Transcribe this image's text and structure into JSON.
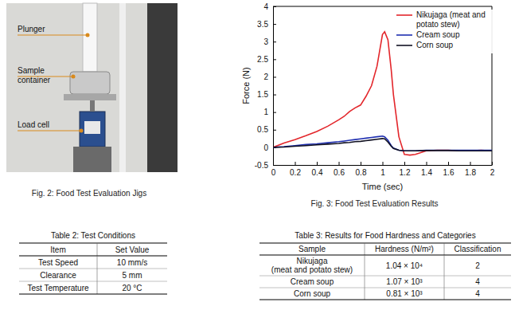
{
  "figure2": {
    "caption": "Fig. 2: Food Test Evaluation Jigs",
    "labels": [
      "Plunger",
      "Sample container",
      "Load cell"
    ]
  },
  "chart_data": {
    "type": "line",
    "title": "Fig. 3: Food Test Evaluation Results",
    "x_label": "Time (sec)",
    "y_label": "Force (N)",
    "x": [
      0,
      0.1,
      0.2,
      0.3,
      0.4,
      0.5,
      0.6,
      0.65,
      0.7,
      0.75,
      0.8,
      0.85,
      0.9,
      0.95,
      1.0,
      1.02,
      1.05,
      1.08,
      1.1,
      1.15,
      1.2,
      1.25,
      1.3,
      1.4,
      1.5,
      1.6,
      1.7,
      1.8,
      1.9,
      2.0
    ],
    "series": [
      {
        "name": "Nikujaga (meat and potato stew)",
        "color": "#e3262b",
        "values": [
          0.0,
          0.12,
          0.22,
          0.33,
          0.45,
          0.6,
          0.78,
          0.88,
          1.02,
          1.12,
          1.2,
          1.45,
          1.75,
          2.3,
          3.2,
          3.28,
          3.05,
          2.2,
          1.5,
          0.3,
          -0.2,
          -0.22,
          -0.2,
          -0.1,
          -0.08,
          -0.08,
          -0.1,
          -0.1,
          -0.08,
          -0.1
        ]
      },
      {
        "name": "Cream soup",
        "color": "#1f2fb0",
        "values": [
          0.0,
          0.02,
          0.05,
          0.08,
          0.1,
          0.13,
          0.16,
          0.18,
          0.2,
          0.22,
          0.24,
          0.26,
          0.28,
          0.3,
          0.32,
          0.3,
          0.2,
          0.05,
          -0.02,
          -0.08,
          -0.1,
          -0.1,
          -0.1,
          -0.08,
          -0.08,
          -0.08,
          -0.08,
          -0.08,
          -0.08,
          -0.08
        ]
      },
      {
        "name": "Corn soup",
        "color": "#111122",
        "values": [
          0.0,
          0.01,
          0.03,
          0.05,
          0.07,
          0.09,
          0.11,
          0.13,
          0.14,
          0.16,
          0.17,
          0.19,
          0.21,
          0.23,
          0.25,
          0.24,
          0.15,
          0.03,
          -0.03,
          -0.08,
          -0.1,
          -0.1,
          -0.1,
          -0.09,
          -0.09,
          -0.09,
          -0.1,
          -0.1,
          -0.1,
          -0.1
        ]
      }
    ],
    "xlim": [
      0,
      2
    ],
    "xticks": [
      0,
      0.2,
      0.4,
      0.6,
      0.8,
      1,
      1.2,
      1.4,
      1.6,
      1.8,
      2
    ],
    "ylim": [
      -0.5,
      4
    ],
    "yticks": [
      -0.5,
      0,
      0.5,
      1,
      1.5,
      2,
      2.5,
      3,
      3.5,
      4
    ],
    "legend": "upper right",
    "grid": false
  },
  "table2": {
    "title": "Table 2: Test Conditions",
    "header": [
      "Item",
      "Set Value"
    ],
    "rows": [
      [
        "Test Speed",
        "10 mm/s"
      ],
      [
        "Clearance",
        "5 mm"
      ],
      [
        "Test Temperature",
        "20 °C"
      ]
    ]
  },
  "table3": {
    "title": "Table 3: Results for Food Hardness and Categories",
    "header": [
      "Sample",
      "Hardness (N/m²)",
      "Classification"
    ],
    "rows": [
      [
        [
          "Nikujaga",
          "(meat and potato stew)"
        ],
        "1.04 × 10⁴",
        2
      ],
      [
        "Cream soup",
        "1.07 × 10³",
        4
      ],
      [
        "Corn soup",
        "0.81 × 10³",
        4
      ]
    ]
  }
}
